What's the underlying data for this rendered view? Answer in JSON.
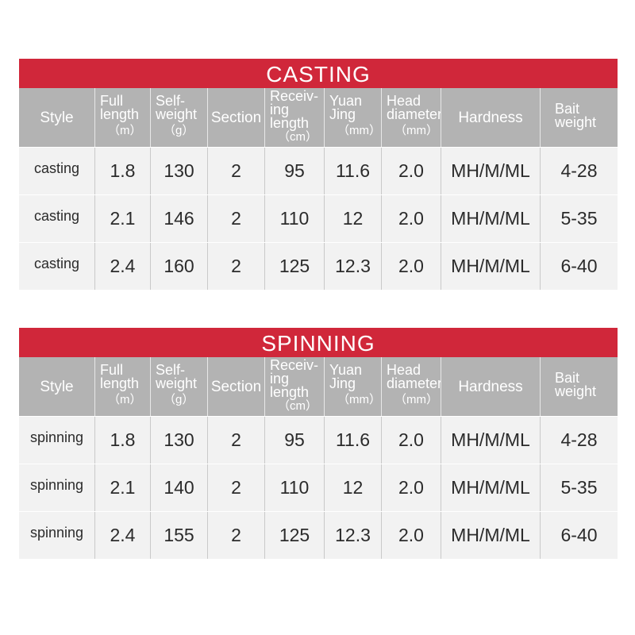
{
  "headers": {
    "style": "Style",
    "full_length": [
      "Full",
      "length"
    ],
    "full_length_unit": "（m）",
    "self_weight": [
      "Self-",
      "weight"
    ],
    "self_weight_unit": "（g）",
    "section": "Section",
    "receiving_length": [
      "Receiv-",
      "ing",
      "length"
    ],
    "receiving_length_unit": "（cm）",
    "yuan_jing": [
      "Yuan",
      "Jing"
    ],
    "yuan_jing_unit": "（mm）",
    "head_diameter": [
      "Head",
      "diameter"
    ],
    "head_diameter_unit": "（mm）",
    "hardness": "Hardness",
    "bait_weight": [
      "Bait",
      "weight"
    ]
  },
  "casting": {
    "title": "CASTING",
    "rows": [
      [
        "casting",
        "1.8",
        "130",
        "2",
        "95",
        "11.6",
        "2.0",
        "MH/M/ML",
        "4-28"
      ],
      [
        "casting",
        "2.1",
        "146",
        "2",
        "110",
        "12",
        "2.0",
        "MH/M/ML",
        "5-35"
      ],
      [
        "casting",
        "2.4",
        "160",
        "2",
        "125",
        "12.3",
        "2.0",
        "MH/M/ML",
        "6-40"
      ]
    ]
  },
  "spinning": {
    "title": "SPINNING",
    "rows": [
      [
        "spinning",
        "1.8",
        "130",
        "2",
        "95",
        "11.6",
        "2.0",
        "MH/M/ML",
        "4-28"
      ],
      [
        "spinning",
        "2.1",
        "140",
        "2",
        "110",
        "12",
        "2.0",
        "MH/M/ML",
        "5-35"
      ],
      [
        "spinning",
        "2.4",
        "155",
        "2",
        "125",
        "12.3",
        "2.0",
        "MH/M/ML",
        "6-40"
      ]
    ]
  },
  "colors": {
    "banner": "#d0273a",
    "header_bg": "#b3b3b3",
    "row_bg": "#f2f2f2"
  }
}
